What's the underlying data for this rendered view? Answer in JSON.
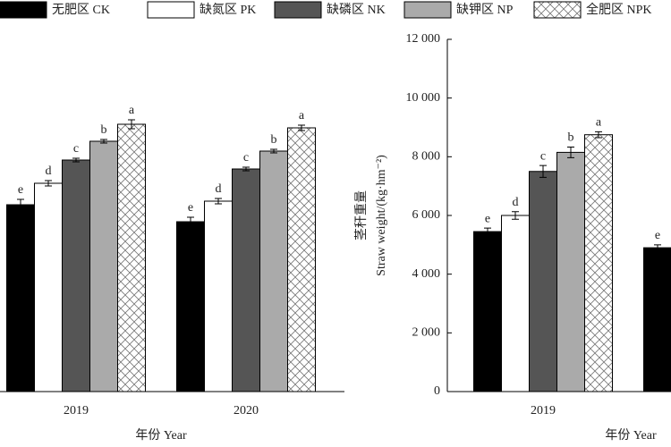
{
  "chart_data": [
    {
      "type": "bar",
      "categories": [
        "2019",
        "2020"
      ],
      "xlabel": "年份 Year",
      "ylim": [
        0,
        400
      ],
      "series": [
        {
          "name": "无肥区 CK",
          "color": "#000000",
          "values": [
            209,
            190
          ],
          "errors": [
            6,
            5
          ],
          "letters": [
            "e",
            "e"
          ]
        },
        {
          "name": "缺氮区 PK",
          "color": "#ffffff",
          "values": [
            233,
            213
          ],
          "errors": [
            3,
            3
          ],
          "letters": [
            "d",
            "d"
          ]
        },
        {
          "name": "缺磷区 NK",
          "color": "#555555",
          "values": [
            259,
            249
          ],
          "errors": [
            2,
            2
          ],
          "letters": [
            "c",
            "c"
          ]
        },
        {
          "name": "缺钾区 NP",
          "color": "#aaaaaa",
          "values": [
            280,
            269
          ],
          "errors": [
            2,
            2
          ],
          "letters": [
            "b",
            "b"
          ]
        },
        {
          "name": "全肥区 NPK",
          "color": "#ffffff",
          "pattern": "crosshatch",
          "values": [
            299,
            295
          ],
          "errors": [
            5,
            3
          ],
          "letters": [
            "a",
            "a"
          ]
        }
      ]
    },
    {
      "type": "bar",
      "categories": [
        "2019",
        null
      ],
      "xlabel": "年份 Year",
      "ylabel": [
        "茎秆重量",
        "Straw weight/(kg·hm⁻²)"
      ],
      "ylim": [
        0,
        12000
      ],
      "yticks": [
        0,
        {
          "value": 2000,
          "label": "2 000"
        },
        {
          "value": 4000,
          "label": "4 000"
        },
        {
          "value": 6000,
          "label": "6 000"
        },
        {
          "value": 8000,
          "label": "8 000"
        },
        {
          "value": 10000,
          "label": "10 000"
        },
        {
          "value": 12000,
          "label": "12 000"
        }
      ],
      "series": [
        {
          "color": "#000000",
          "values": [
            5450,
            4900
          ],
          "errors": [
            120,
            100
          ],
          "letters": [
            "e",
            "e"
          ]
        },
        {
          "color": "#ffffff",
          "values": [
            6000,
            null
          ],
          "errors": [
            130,
            null
          ],
          "letters": [
            "d",
            null
          ]
        },
        {
          "color": "#555555",
          "values": [
            7500,
            null
          ],
          "errors": [
            200,
            null
          ],
          "letters": [
            "c",
            null
          ]
        },
        {
          "color": "#aaaaaa",
          "values": [
            8150,
            null
          ],
          "errors": [
            180,
            null
          ],
          "letters": [
            "b",
            null
          ]
        },
        {
          "color": "#ffffff",
          "pattern": "crosshatch",
          "values": [
            8750,
            null
          ],
          "errors": [
            100,
            null
          ],
          "letters": [
            "a",
            null
          ]
        }
      ]
    }
  ]
}
